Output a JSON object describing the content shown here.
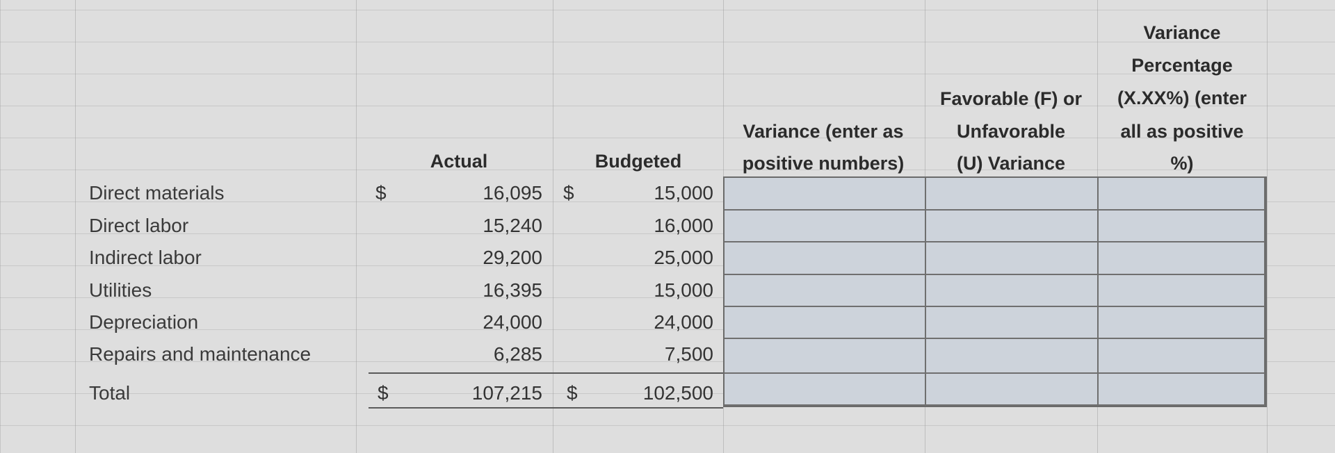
{
  "headers": {
    "actual": "Actual",
    "budgeted": "Budgeted",
    "variance": [
      "Variance (enter as",
      "positive numbers)"
    ],
    "favorable": [
      "Favorable (F) or",
      "Unfavorable",
      "(U) Variance"
    ],
    "variance_pct": [
      "Variance",
      "Percentage",
      "(X.XX%) (enter",
      "all as positive",
      "%)"
    ]
  },
  "currency_symbol": "$",
  "rows": [
    {
      "label": "Direct materials",
      "actual": "16,095",
      "budgeted": "15,000"
    },
    {
      "label": "Direct labor",
      "actual": "15,240",
      "budgeted": "16,000"
    },
    {
      "label": "Indirect labor",
      "actual": "29,200",
      "budgeted": "25,000"
    },
    {
      "label": "Utilities",
      "actual": "16,395",
      "budgeted": "15,000"
    },
    {
      "label": "Depreciation",
      "actual": "24,000",
      "budgeted": "24,000"
    },
    {
      "label": "Repairs and maintenance",
      "actual": "6,285",
      "budgeted": "7,500"
    }
  ],
  "total": {
    "label": "Total",
    "actual": "107,215",
    "budgeted": "102,500"
  }
}
